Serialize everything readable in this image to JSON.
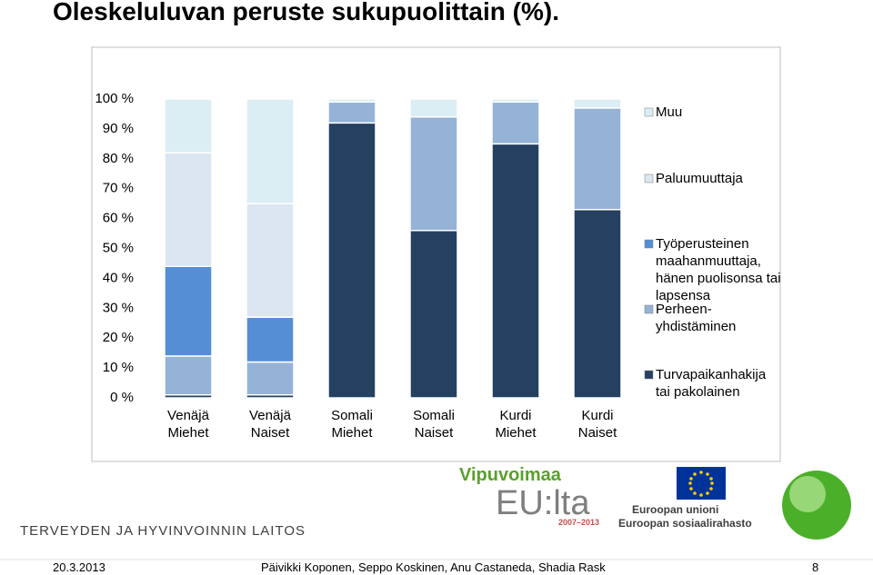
{
  "title": "Oleskeluluvan peruste sukupuolittain (%).",
  "chart_data": {
    "type": "stacked-bar",
    "categories": [
      "Venäjä Miehet",
      "Venäjä Naiset",
      "Somali Miehet",
      "Somali Naiset",
      "Kurdi Miehet",
      "Kurdi Naiset"
    ],
    "series": [
      {
        "name": "Turvapaikanhakija tai pakolainen",
        "color": "#254061",
        "values": [
          1,
          1,
          92,
          56,
          85,
          63
        ]
      },
      {
        "name": "Perheen-yhdistäminen",
        "color": "#95b3d7",
        "values": [
          13,
          11,
          7,
          38,
          14,
          34
        ]
      },
      {
        "name": "Työperusteinen maahanmuuttaja, hänen puolisonsa tai lapsensa",
        "color": "#558ed5",
        "values": [
          30,
          15,
          0,
          0,
          0,
          0
        ]
      },
      {
        "name": "Paluumuuttaja",
        "color": "#dce6f2",
        "values": [
          38,
          38,
          0,
          0,
          0,
          0
        ]
      },
      {
        "name": "Muu",
        "color": "#dbeef4",
        "values": [
          18,
          35,
          1,
          6,
          1,
          3
        ]
      }
    ],
    "ylim": [
      0,
      100
    ],
    "yticks": [
      {
        "value": 0,
        "label": "0 %"
      },
      {
        "value": 10,
        "label": "10 %"
      },
      {
        "value": 20,
        "label": "20 %"
      },
      {
        "value": 30,
        "label": "30 %"
      },
      {
        "value": 40,
        "label": "40 %"
      },
      {
        "value": 50,
        "label": "50 %"
      },
      {
        "value": 60,
        "label": "60 %"
      },
      {
        "value": 70,
        "label": "70 %"
      },
      {
        "value": 80,
        "label": "80 %"
      },
      {
        "value": 90,
        "label": "90 %"
      },
      {
        "value": 100,
        "label": "100 %"
      }
    ],
    "grid": false,
    "legend": "right"
  },
  "logos": {
    "vipuvoimaa": "Vipuvoimaa",
    "eu": "EU:lta",
    "years": "2007–2013",
    "eu_union": "Euroopan unioni",
    "esr": "Euroopan sosiaalirahasto",
    "thl": "TERVEYDEN JA HYVINVOINNIN LAITOS"
  },
  "footer": {
    "date": "20.3.2013",
    "authors": "Päivikki Koponen, Seppo Koskinen, Anu Castaneda, Shadia Rask",
    "page": "8"
  }
}
